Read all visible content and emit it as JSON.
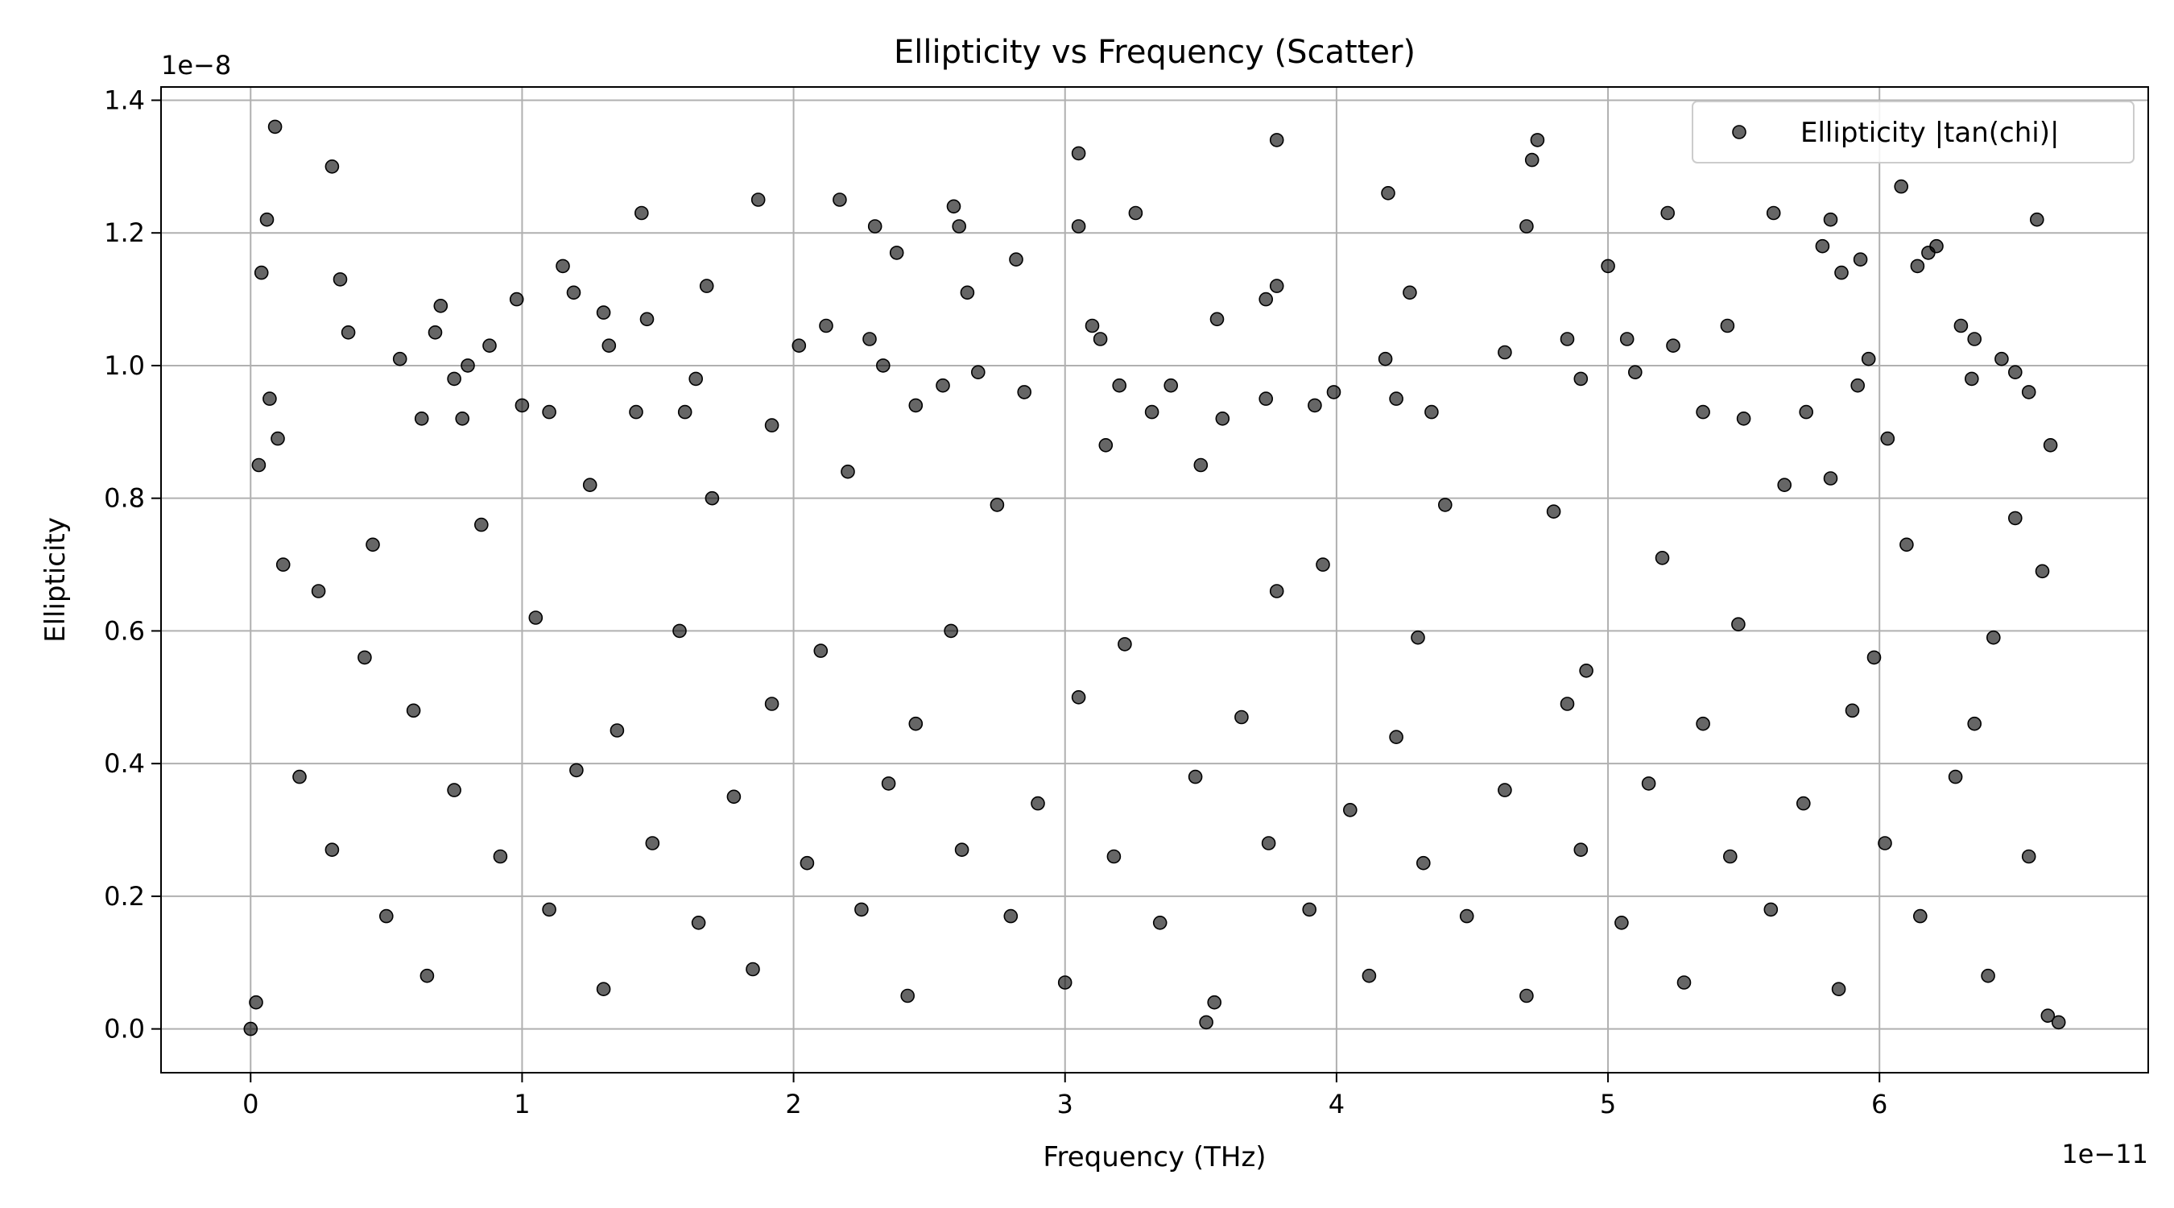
{
  "chart_data": {
    "type": "scatter",
    "title": "Ellipticity vs Frequency (Scatter)",
    "xlabel": "Frequency (THz)",
    "ylabel": "Ellipticity",
    "x_offset_label": "1e−11",
    "y_offset_label": "1e−8",
    "x_scale_factor": 1e-11,
    "y_scale_factor": 1e-08,
    "xlim": [
      -0.33,
      6.99
    ],
    "ylim": [
      -0.066,
      1.42
    ],
    "x_ticks": [
      0,
      1,
      2,
      3,
      4,
      5,
      6
    ],
    "x_tick_labels": [
      "0",
      "1",
      "2",
      "3",
      "4",
      "5",
      "6"
    ],
    "y_ticks": [
      0.0,
      0.2,
      0.4,
      0.6,
      0.8,
      1.0,
      1.2,
      1.4
    ],
    "y_tick_labels": [
      "0.0",
      "0.2",
      "0.4",
      "0.6",
      "0.8",
      "1.0",
      "1.2",
      "1.4"
    ],
    "grid": true,
    "legend_position": "top-right",
    "marker_color": "#000000",
    "marker_opacity": 0.6,
    "series": [
      {
        "name": "Ellipticity |tan(chi)|",
        "points": [
          [
            0.04,
            1.14
          ],
          [
            0.06,
            1.22
          ],
          [
            0.09,
            1.36
          ],
          [
            0.3,
            1.3
          ],
          [
            0.33,
            1.13
          ],
          [
            0.07,
            0.95
          ],
          [
            0.03,
            0.85
          ],
          [
            0.1,
            0.89
          ],
          [
            0.36,
            1.05
          ],
          [
            0.55,
            1.01
          ],
          [
            0.63,
            0.92
          ],
          [
            0.7,
            1.09
          ],
          [
            0.68,
            1.05
          ],
          [
            0.75,
            0.98
          ],
          [
            0.8,
            1.0
          ],
          [
            0.78,
            0.92
          ],
          [
            0.88,
            1.03
          ],
          [
            0.98,
            1.1
          ],
          [
            1.0,
            0.94
          ],
          [
            1.1,
            0.93
          ],
          [
            1.15,
            1.15
          ],
          [
            1.19,
            1.11
          ],
          [
            1.3,
            1.08
          ],
          [
            1.32,
            1.03
          ],
          [
            1.44,
            1.23
          ],
          [
            1.46,
            1.07
          ],
          [
            1.42,
            0.93
          ],
          [
            1.64,
            0.98
          ],
          [
            1.68,
            1.12
          ],
          [
            1.6,
            0.93
          ],
          [
            1.87,
            1.25
          ],
          [
            1.92,
            0.91
          ],
          [
            2.02,
            1.03
          ],
          [
            2.12,
            1.06
          ],
          [
            2.17,
            1.25
          ],
          [
            2.3,
            1.21
          ],
          [
            2.38,
            1.17
          ],
          [
            2.28,
            1.04
          ],
          [
            2.33,
            1.0
          ],
          [
            2.45,
            0.94
          ],
          [
            2.59,
            1.24
          ],
          [
            2.61,
            1.21
          ],
          [
            2.64,
            1.11
          ],
          [
            2.55,
            0.97
          ],
          [
            2.68,
            0.99
          ],
          [
            2.82,
            1.16
          ],
          [
            2.85,
            0.96
          ],
          [
            3.05,
            1.32
          ],
          [
            3.05,
            1.21
          ],
          [
            3.1,
            1.06
          ],
          [
            3.13,
            1.04
          ],
          [
            3.26,
            1.23
          ],
          [
            3.2,
            0.97
          ],
          [
            3.32,
            0.93
          ],
          [
            3.39,
            0.97
          ],
          [
            3.56,
            1.07
          ],
          [
            3.58,
            0.92
          ],
          [
            3.78,
            1.34
          ],
          [
            3.78,
            1.12
          ],
          [
            3.74,
            1.1
          ],
          [
            3.74,
            0.95
          ],
          [
            3.92,
            0.94
          ],
          [
            3.99,
            0.96
          ],
          [
            4.19,
            1.26
          ],
          [
            4.27,
            1.11
          ],
          [
            4.18,
            1.01
          ],
          [
            4.22,
            0.95
          ],
          [
            4.35,
            0.93
          ],
          [
            4.62,
            1.02
          ],
          [
            4.7,
            1.21
          ],
          [
            4.72,
            1.31
          ],
          [
            4.74,
            1.34
          ],
          [
            4.85,
            1.04
          ],
          [
            4.9,
            0.98
          ],
          [
            5.0,
            1.15
          ],
          [
            5.07,
            1.04
          ],
          [
            5.1,
            0.99
          ],
          [
            5.22,
            1.23
          ],
          [
            5.24,
            1.03
          ],
          [
            5.35,
            0.93
          ],
          [
            5.44,
            1.06
          ],
          [
            5.5,
            0.92
          ],
          [
            5.61,
            1.23
          ],
          [
            5.73,
            0.93
          ],
          [
            5.79,
            1.18
          ],
          [
            5.82,
            1.22
          ],
          [
            5.86,
            1.14
          ],
          [
            5.93,
            1.16
          ],
          [
            5.96,
            1.01
          ],
          [
            5.92,
            0.97
          ],
          [
            6.08,
            1.27
          ],
          [
            6.14,
            1.15
          ],
          [
            6.18,
            1.17
          ],
          [
            6.21,
            1.18
          ],
          [
            6.3,
            1.06
          ],
          [
            6.35,
            1.04
          ],
          [
            6.34,
            0.98
          ],
          [
            6.45,
            1.01
          ],
          [
            6.5,
            0.99
          ],
          [
            6.55,
            0.96
          ],
          [
            6.58,
            1.22
          ],
          [
            6.63,
            0.88
          ],
          [
            6.03,
            0.89
          ],
          [
            5.82,
            0.83
          ],
          [
            0.12,
            0.7
          ],
          [
            0.25,
            0.66
          ],
          [
            0.45,
            0.73
          ],
          [
            0.85,
            0.76
          ],
          [
            1.25,
            0.82
          ],
          [
            1.7,
            0.8
          ],
          [
            2.2,
            0.84
          ],
          [
            2.75,
            0.79
          ],
          [
            3.15,
            0.88
          ],
          [
            3.5,
            0.85
          ],
          [
            3.95,
            0.7
          ],
          [
            4.4,
            0.79
          ],
          [
            4.8,
            0.78
          ],
          [
            5.2,
            0.71
          ],
          [
            5.65,
            0.82
          ],
          [
            6.1,
            0.73
          ],
          [
            6.5,
            0.77
          ],
          [
            6.6,
            0.69
          ],
          [
            0.42,
            0.56
          ],
          [
            1.05,
            0.62
          ],
          [
            1.58,
            0.6
          ],
          [
            2.1,
            0.57
          ],
          [
            2.58,
            0.6
          ],
          [
            3.22,
            0.58
          ],
          [
            3.78,
            0.66
          ],
          [
            4.3,
            0.59
          ],
          [
            4.92,
            0.54
          ],
          [
            5.48,
            0.61
          ],
          [
            5.98,
            0.56
          ],
          [
            6.42,
            0.59
          ],
          [
            0.6,
            0.48
          ],
          [
            1.35,
            0.45
          ],
          [
            1.92,
            0.49
          ],
          [
            2.45,
            0.46
          ],
          [
            3.05,
            0.5
          ],
          [
            3.65,
            0.47
          ],
          [
            4.22,
            0.44
          ],
          [
            4.85,
            0.49
          ],
          [
            5.35,
            0.46
          ],
          [
            5.9,
            0.48
          ],
          [
            6.35,
            0.46
          ],
          [
            0.18,
            0.38
          ],
          [
            0.75,
            0.36
          ],
          [
            1.2,
            0.39
          ],
          [
            1.78,
            0.35
          ],
          [
            2.35,
            0.37
          ],
          [
            2.9,
            0.34
          ],
          [
            3.48,
            0.38
          ],
          [
            4.05,
            0.33
          ],
          [
            4.62,
            0.36
          ],
          [
            5.15,
            0.37
          ],
          [
            5.72,
            0.34
          ],
          [
            6.28,
            0.38
          ],
          [
            0.3,
            0.27
          ],
          [
            0.92,
            0.26
          ],
          [
            1.48,
            0.28
          ],
          [
            2.05,
            0.25
          ],
          [
            2.62,
            0.27
          ],
          [
            3.18,
            0.26
          ],
          [
            3.75,
            0.28
          ],
          [
            4.32,
            0.25
          ],
          [
            4.9,
            0.27
          ],
          [
            5.45,
            0.26
          ],
          [
            6.02,
            0.28
          ],
          [
            6.55,
            0.26
          ],
          [
            0.5,
            0.17
          ],
          [
            1.1,
            0.18
          ],
          [
            1.65,
            0.16
          ],
          [
            2.25,
            0.18
          ],
          [
            2.8,
            0.17
          ],
          [
            3.35,
            0.16
          ],
          [
            3.9,
            0.18
          ],
          [
            4.48,
            0.17
          ],
          [
            5.05,
            0.16
          ],
          [
            5.6,
            0.18
          ],
          [
            6.15,
            0.17
          ],
          [
            0.02,
            0.04
          ],
          [
            0.65,
            0.08
          ],
          [
            1.3,
            0.06
          ],
          [
            1.85,
            0.09
          ],
          [
            2.42,
            0.05
          ],
          [
            3.0,
            0.07
          ],
          [
            3.55,
            0.04
          ],
          [
            4.12,
            0.08
          ],
          [
            4.7,
            0.05
          ],
          [
            5.28,
            0.07
          ],
          [
            5.85,
            0.06
          ],
          [
            6.4,
            0.08
          ],
          [
            6.62,
            0.02
          ],
          [
            0.0,
            0.0
          ],
          [
            3.52,
            0.01
          ],
          [
            6.66,
            0.01
          ]
        ]
      }
    ]
  }
}
